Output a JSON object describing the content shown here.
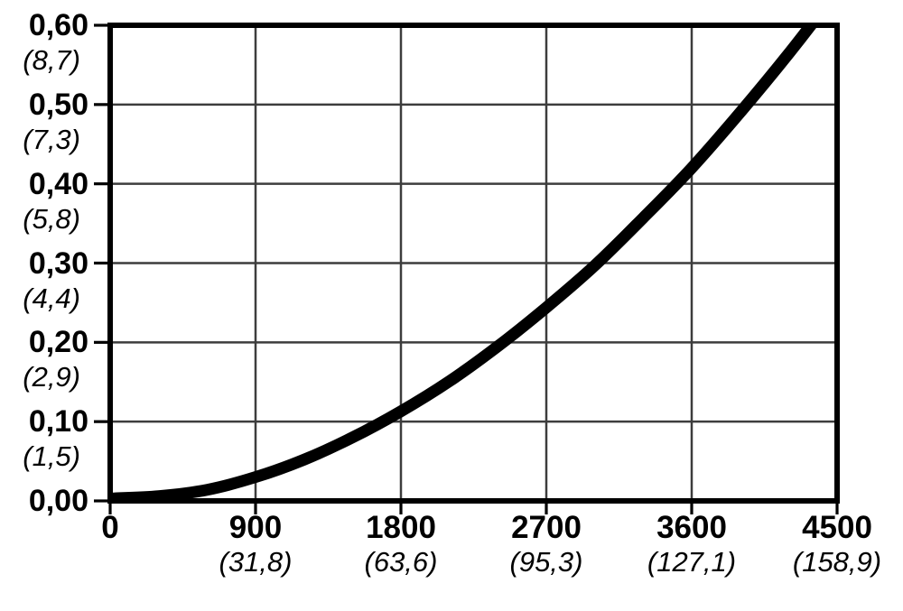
{
  "chart_data": {
    "type": "line",
    "title": "",
    "xlabel": "",
    "ylabel": "",
    "xlim": [
      0,
      4500
    ],
    "ylim": [
      0,
      0.6
    ],
    "grid": true,
    "legend": "none",
    "decimal_style": "comma",
    "x_ticks": [
      {
        "value": 0,
        "label": "0",
        "secondary": ""
      },
      {
        "value": 900,
        "label": "900",
        "secondary": "(31,8)"
      },
      {
        "value": 1800,
        "label": "1800",
        "secondary": "(63,6)"
      },
      {
        "value": 2700,
        "label": "2700",
        "secondary": "(95,3)"
      },
      {
        "value": 3600,
        "label": "3600",
        "secondary": "(127,1)"
      },
      {
        "value": 4500,
        "label": "4500",
        "secondary": "(158,9)"
      }
    ],
    "y_ticks": [
      {
        "value": 0.6,
        "label": "0,60",
        "secondary": "(8,7)"
      },
      {
        "value": 0.5,
        "label": "0,50",
        "secondary": "(7,3)"
      },
      {
        "value": 0.4,
        "label": "0,40",
        "secondary": "(5,8)"
      },
      {
        "value": 0.3,
        "label": "0,30",
        "secondary": "(4,4)"
      },
      {
        "value": 0.2,
        "label": "0,20",
        "secondary": "(2,9)"
      },
      {
        "value": 0.1,
        "label": "0,10",
        "secondary": "(1,5)"
      },
      {
        "value": 0.0,
        "label": "0,00",
        "secondary": ""
      }
    ],
    "series": [
      {
        "name": "curve",
        "points": [
          [
            0,
            0.003
          ],
          [
            300,
            0.006
          ],
          [
            600,
            0.014
          ],
          [
            900,
            0.03
          ],
          [
            1200,
            0.052
          ],
          [
            1500,
            0.08
          ],
          [
            1800,
            0.113
          ],
          [
            2100,
            0.151
          ],
          [
            2400,
            0.195
          ],
          [
            2700,
            0.244
          ],
          [
            3000,
            0.297
          ],
          [
            3300,
            0.357
          ],
          [
            3600,
            0.42
          ],
          [
            3900,
            0.49
          ],
          [
            4200,
            0.564
          ],
          [
            4500,
            0.643
          ]
        ]
      }
    ],
    "colors": {
      "background": "#ffffff",
      "curve": "#000000",
      "axis_border": "#000000",
      "grid": "#3d3d3d",
      "tick": "#000000",
      "text": "#000000"
    }
  }
}
